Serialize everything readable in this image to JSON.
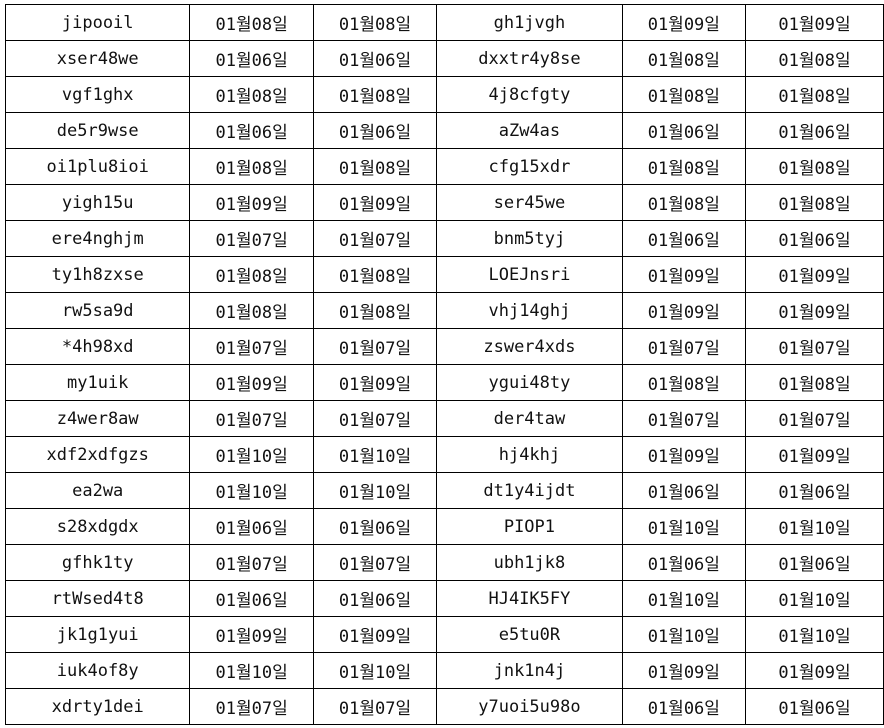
{
  "rows": [
    [
      "jipooil",
      "01월08일",
      "01월08일",
      "gh1jvgh",
      "01월09일",
      "01월09일"
    ],
    [
      "xser48we",
      "01월06일",
      "01월06일",
      "dxxtr4y8se",
      "01월08일",
      "01월08일"
    ],
    [
      "vgf1ghx",
      "01월08일",
      "01월08일",
      "4j8cfgty",
      "01월08일",
      "01월08일"
    ],
    [
      "de5r9wse",
      "01월06일",
      "01월06일",
      "aZw4as",
      "01월06일",
      "01월06일"
    ],
    [
      "oi1plu8ioi",
      "01월08일",
      "01월08일",
      "cfg15xdr",
      "01월08일",
      "01월08일"
    ],
    [
      "yigh15u",
      "01월09일",
      "01월09일",
      "ser45we",
      "01월08일",
      "01월08일"
    ],
    [
      "ere4nghjm",
      "01월07일",
      "01월07일",
      "bnm5tyj",
      "01월06일",
      "01월06일"
    ],
    [
      "ty1h8zxse",
      "01월08일",
      "01월08일",
      "LOEJnsri",
      "01월09일",
      "01월09일"
    ],
    [
      "rw5sa9d",
      "01월08일",
      "01월08일",
      "vhj14ghj",
      "01월09일",
      "01월09일"
    ],
    [
      "*4h98xd",
      "01월07일",
      "01월07일",
      "zswer4xds",
      "01월07일",
      "01월07일"
    ],
    [
      "my1uik",
      "01월09일",
      "01월09일",
      "ygui48ty",
      "01월08일",
      "01월08일"
    ],
    [
      "z4wer8aw",
      "01월07일",
      "01월07일",
      "der4taw",
      "01월07일",
      "01월07일"
    ],
    [
      "xdf2xdfgzs",
      "01월10일",
      "01월10일",
      "hj4khj",
      "01월09일",
      "01월09일"
    ],
    [
      "ea2wa",
      "01월10일",
      "01월10일",
      "dt1y4ijdt",
      "01월06일",
      "01월06일"
    ],
    [
      "s28xdgdx",
      "01월06일",
      "01월06일",
      "PIOP1",
      "01월10일",
      "01월10일"
    ],
    [
      "gfhk1ty",
      "01월07일",
      "01월07일",
      "ubh1jk8",
      "01월06일",
      "01월06일"
    ],
    [
      "rtWsed4t8",
      "01월06일",
      "01월06일",
      "HJ4IK5FY",
      "01월10일",
      "01월10일"
    ],
    [
      "jk1g1yui",
      "01월09일",
      "01월09일",
      "e5tu0R",
      "01월10일",
      "01월10일"
    ],
    [
      "iuk4of8y",
      "01월10일",
      "01월10일",
      "jnk1n4j",
      "01월09일",
      "01월09일"
    ],
    [
      "xdrty1dei",
      "01월07일",
      "01월07일",
      "y7uoi5u98o",
      "01월06일",
      "01월06일"
    ]
  ]
}
